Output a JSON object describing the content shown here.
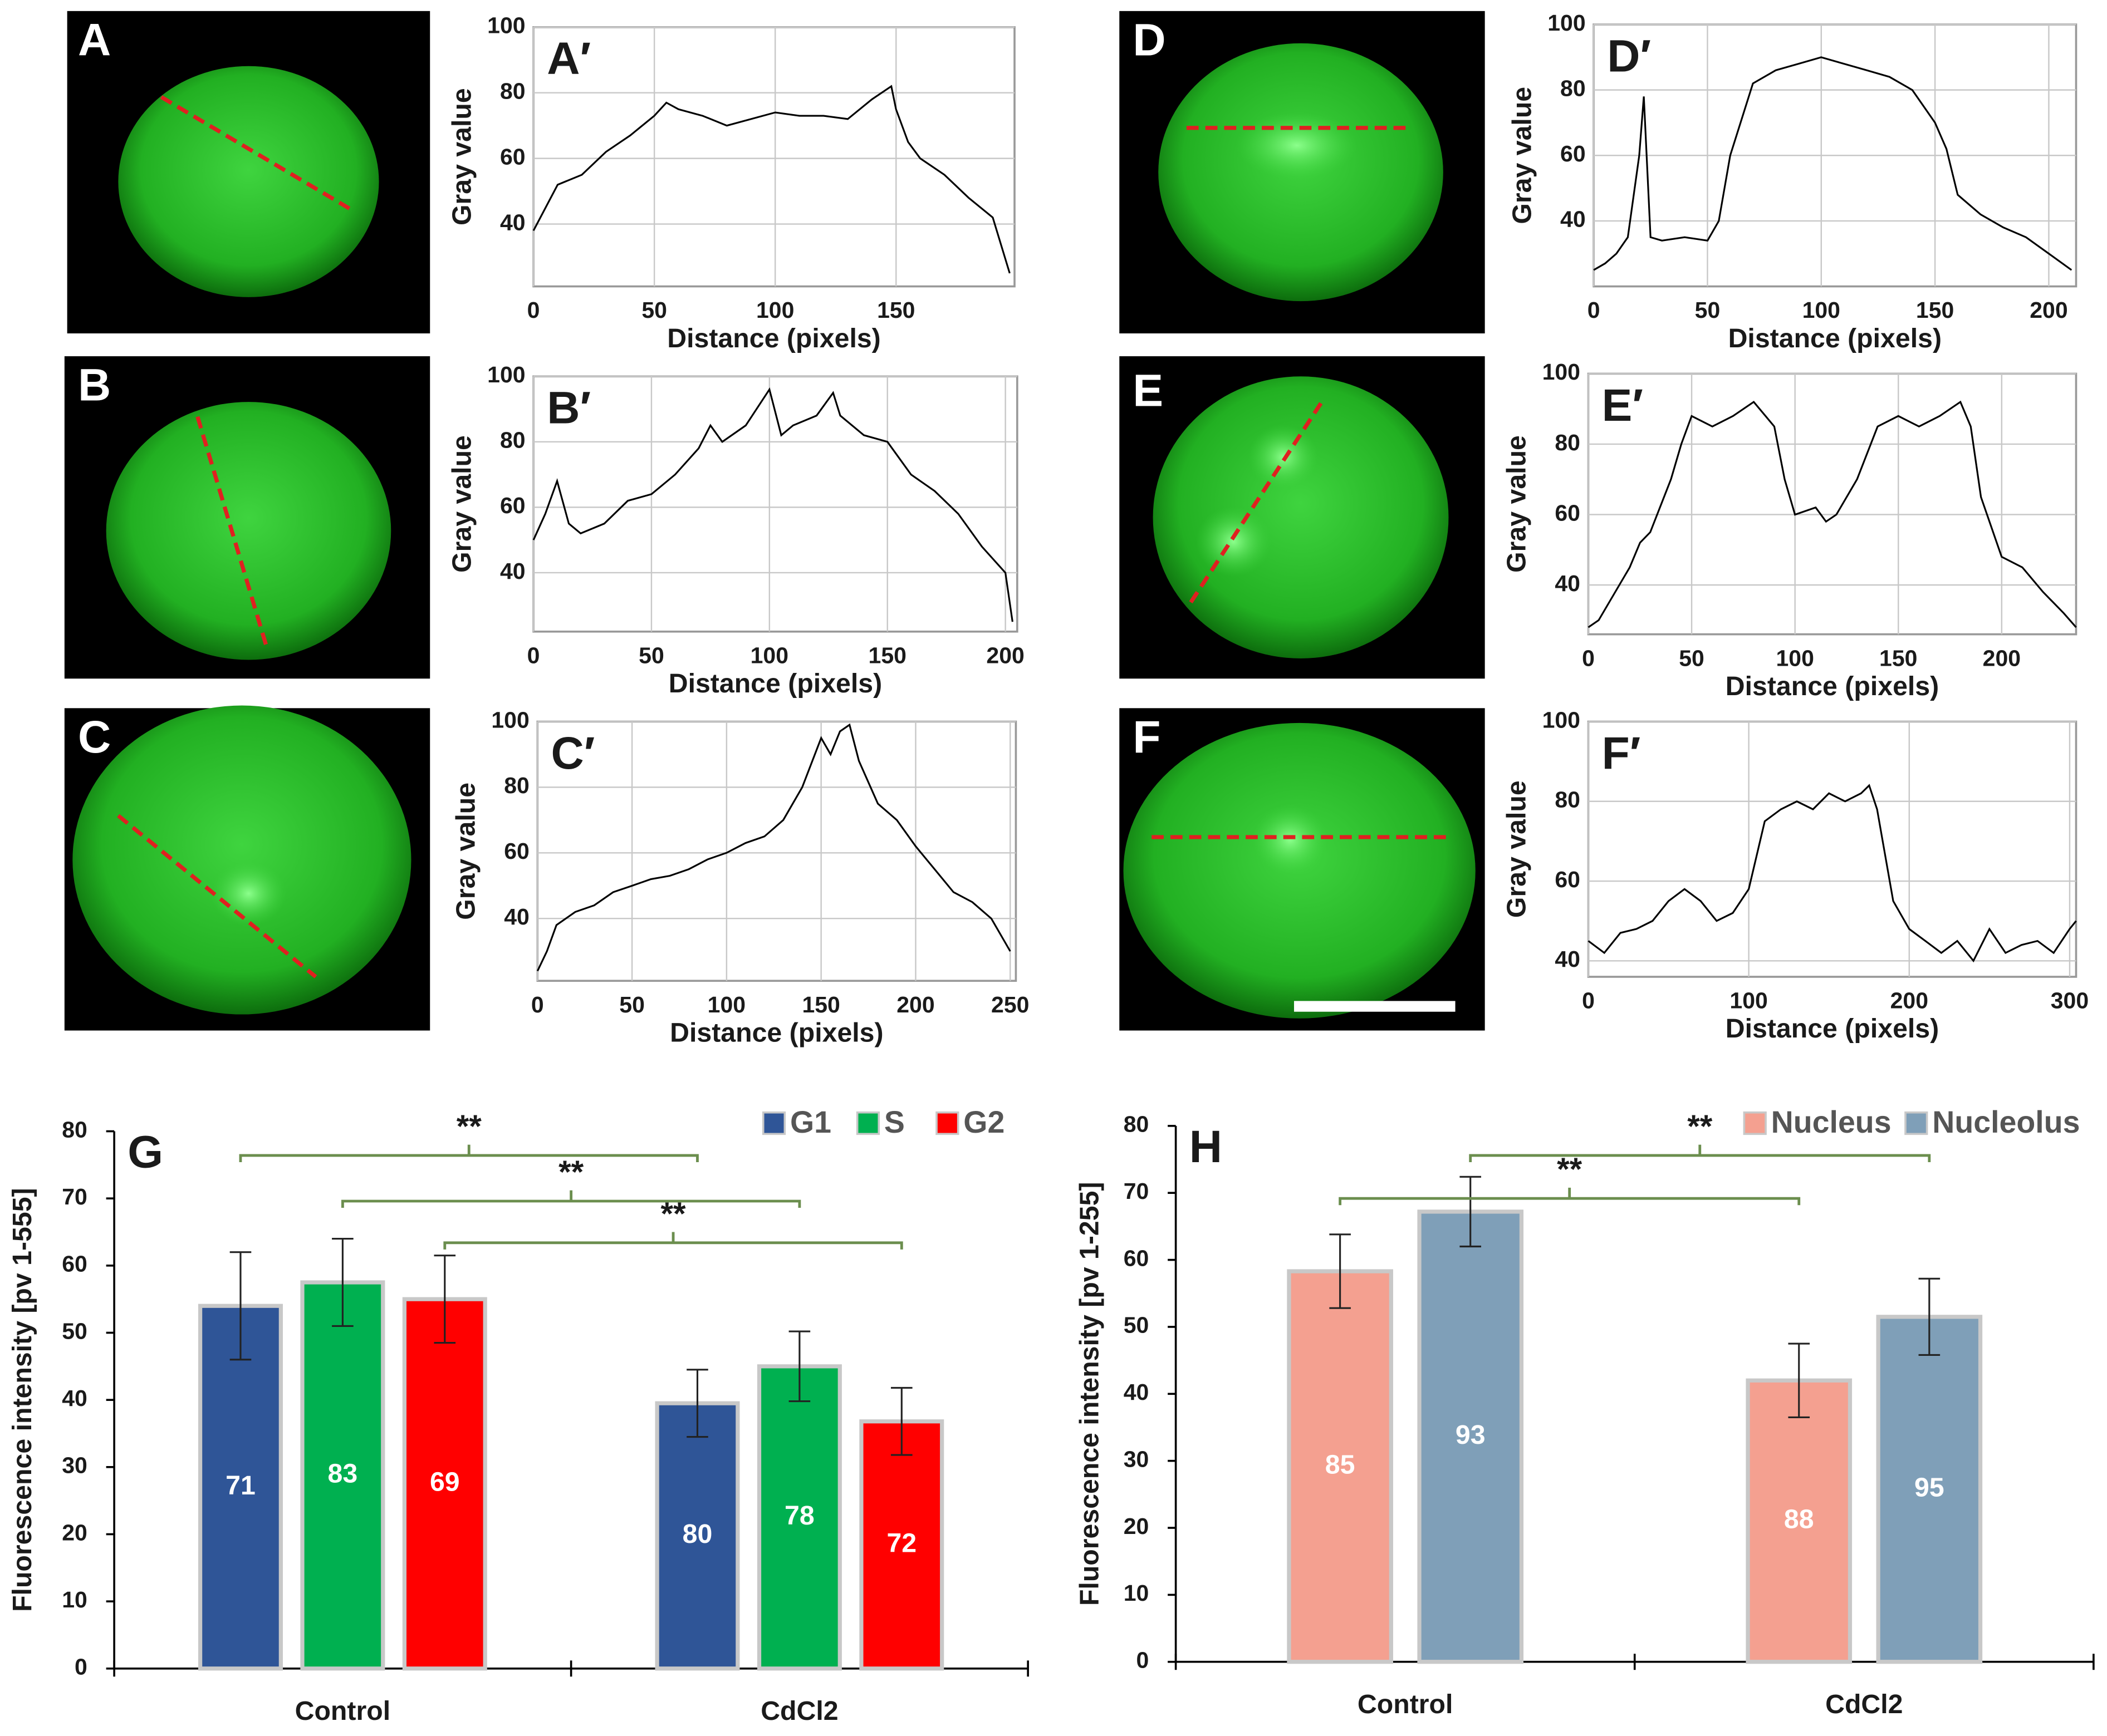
{
  "panels": [
    "A",
    "B",
    "C",
    "D",
    "E",
    "F"
  ],
  "chart_data": [
    {
      "type": "line",
      "label": "A′",
      "xlabel": "Distance (pixels)",
      "ylabel": "Gray value",
      "color": "#000000",
      "grid": true,
      "x": [
        0,
        5,
        10,
        20,
        30,
        40,
        50,
        55,
        60,
        70,
        80,
        90,
        100,
        110,
        120,
        130,
        140,
        148,
        150,
        155,
        160,
        170,
        180,
        190,
        197
      ],
      "values": [
        38,
        45,
        52,
        55,
        62,
        67,
        73,
        77,
        75,
        73,
        70,
        72,
        74,
        73,
        73,
        72,
        78,
        82,
        75,
        65,
        60,
        55,
        48,
        42,
        25
      ],
      "xlim": [
        0,
        199
      ],
      "ylim": [
        21,
        100
      ],
      "xticks": [
        0,
        50,
        100,
        150
      ],
      "yticks": [
        40,
        60,
        80,
        100
      ]
    },
    {
      "type": "line",
      "label": "B′",
      "xlabel": "Distance (pixels)",
      "ylabel": "Gray value",
      "color": "#000000",
      "grid": true,
      "x": [
        0,
        5,
        10,
        15,
        20,
        30,
        40,
        50,
        60,
        70,
        75,
        80,
        90,
        100,
        105,
        110,
        120,
        127,
        130,
        140,
        150,
        160,
        170,
        180,
        190,
        200,
        203
      ],
      "values": [
        50,
        58,
        68,
        55,
        52,
        55,
        62,
        64,
        70,
        78,
        85,
        80,
        85,
        96,
        82,
        85,
        88,
        95,
        88,
        82,
        80,
        70,
        65,
        58,
        48,
        40,
        25
      ],
      "xlim": [
        0,
        205
      ],
      "ylim": [
        22,
        100
      ],
      "xticks": [
        0,
        50,
        100,
        150,
        200
      ],
      "yticks": [
        40,
        60,
        80,
        100
      ]
    },
    {
      "type": "line",
      "label": "C′",
      "xlabel": "Distance (pixels)",
      "ylabel": "Gray value",
      "color": "#000000",
      "grid": true,
      "x": [
        0,
        5,
        10,
        20,
        30,
        40,
        50,
        60,
        70,
        80,
        90,
        100,
        110,
        120,
        130,
        140,
        150,
        155,
        160,
        165,
        170,
        180,
        190,
        200,
        210,
        220,
        230,
        240,
        250
      ],
      "values": [
        24,
        30,
        38,
        42,
        44,
        48,
        50,
        52,
        53,
        55,
        58,
        60,
        63,
        65,
        70,
        80,
        95,
        90,
        97,
        99,
        88,
        75,
        70,
        62,
        55,
        48,
        45,
        40,
        30
      ],
      "xlim": [
        0,
        253
      ],
      "ylim": [
        21,
        100
      ],
      "xticks": [
        0,
        50,
        100,
        150,
        200,
        250
      ],
      "yticks": [
        40,
        60,
        80,
        100
      ]
    },
    {
      "type": "line",
      "label": "D′",
      "xlabel": "Distance (pixels)",
      "ylabel": "Gray value",
      "color": "#000000",
      "grid": true,
      "x": [
        0,
        5,
        10,
        15,
        20,
        22,
        25,
        30,
        40,
        50,
        55,
        60,
        70,
        80,
        90,
        100,
        110,
        120,
        130,
        140,
        150,
        155,
        160,
        170,
        180,
        190,
        200,
        210
      ],
      "values": [
        25,
        27,
        30,
        35,
        60,
        78,
        35,
        34,
        35,
        34,
        40,
        60,
        82,
        86,
        88,
        90,
        88,
        86,
        84,
        80,
        70,
        62,
        48,
        42,
        38,
        35,
        30,
        25
      ],
      "xlim": [
        0,
        212
      ],
      "ylim": [
        20,
        100
      ],
      "xticks": [
        0,
        50,
        100,
        150,
        200
      ],
      "yticks": [
        40,
        60,
        80,
        100
      ]
    },
    {
      "type": "line",
      "label": "E′",
      "xlabel": "Distance (pixels)",
      "ylabel": "Gray value",
      "color": "#000000",
      "grid": true,
      "x": [
        0,
        5,
        10,
        20,
        25,
        30,
        40,
        45,
        50,
        60,
        70,
        80,
        90,
        95,
        100,
        110,
        115,
        120,
        130,
        140,
        150,
        160,
        170,
        180,
        185,
        190,
        200,
        210,
        220,
        230,
        236
      ],
      "values": [
        28,
        30,
        35,
        45,
        52,
        55,
        70,
        80,
        88,
        85,
        88,
        92,
        85,
        70,
        60,
        62,
        58,
        60,
        70,
        85,
        88,
        85,
        88,
        92,
        85,
        65,
        48,
        45,
        38,
        32,
        28
      ],
      "xlim": [
        0,
        236
      ],
      "ylim": [
        26,
        100
      ],
      "xticks": [
        0,
        50,
        100,
        150,
        200
      ],
      "yticks": [
        40,
        60,
        80,
        100
      ]
    },
    {
      "type": "line",
      "label": "F′",
      "xlabel": "Distance (pixels)",
      "ylabel": "Gray value",
      "color": "#000000",
      "grid": true,
      "x": [
        0,
        10,
        20,
        30,
        40,
        50,
        60,
        70,
        80,
        90,
        100,
        110,
        120,
        130,
        140,
        150,
        160,
        170,
        175,
        180,
        190,
        200,
        210,
        220,
        230,
        240,
        250,
        260,
        270,
        280,
        290,
        300,
        304
      ],
      "values": [
        45,
        42,
        47,
        48,
        50,
        55,
        58,
        55,
        50,
        52,
        58,
        75,
        78,
        80,
        78,
        82,
        80,
        82,
        84,
        78,
        55,
        48,
        45,
        42,
        45,
        40,
        48,
        42,
        44,
        45,
        42,
        48,
        50
      ],
      "xlim": [
        0,
        304
      ],
      "ylim": [
        36,
        100
      ],
      "xticks": [
        0,
        100,
        200,
        300
      ],
      "yticks": [
        40,
        60,
        80,
        100
      ]
    },
    {
      "type": "bar",
      "label": "G",
      "ylabel": "Fluorescence intensity [pv 1-555]",
      "categories": [
        "Control",
        "CdCl2"
      ],
      "series": [
        {
          "name": "G1",
          "color": "#2f5597",
          "values": [
            54,
            39.5
          ],
          "errors": [
            8,
            5
          ],
          "bar_texts": [
            "71",
            "80"
          ]
        },
        {
          "name": "S",
          "color": "#00b050",
          "values": [
            57.5,
            45
          ],
          "errors": [
            6.5,
            5.2
          ],
          "bar_texts": [
            "83",
            "78"
          ]
        },
        {
          "name": "G2",
          "color": "#ff0000",
          "values": [
            55,
            36.8
          ],
          "errors": [
            6.5,
            5
          ],
          "bar_texts": [
            "69",
            "72"
          ]
        }
      ],
      "brackets": [
        {
          "label": "**",
          "series": 0
        },
        {
          "label": "**",
          "series": 1
        },
        {
          "label": "**",
          "series": 2
        }
      ],
      "ylim": [
        0,
        80
      ],
      "yticks": [
        0,
        10,
        20,
        30,
        40,
        50,
        60,
        70,
        80
      ]
    },
    {
      "type": "bar",
      "label": "H",
      "ylabel": "Fluorescence intensity [pv 1-255]",
      "categories": [
        "Control",
        "CdCl2"
      ],
      "series": [
        {
          "name": "Nucleus",
          "color": "#f4a090",
          "values": [
            58.3,
            42
          ],
          "errors": [
            5.5,
            5.5
          ],
          "bar_texts": [
            "85",
            "88"
          ]
        },
        {
          "name": "Nucleolus",
          "color": "#7f9fb8",
          "values": [
            67.2,
            51.5
          ],
          "errors": [
            5.2,
            5.7
          ],
          "bar_texts": [
            "93",
            "95"
          ]
        }
      ],
      "brackets": [
        {
          "label": "**",
          "series": 1
        },
        {
          "label": "**",
          "series": 0
        }
      ],
      "ylim": [
        0,
        80
      ],
      "yticks": [
        0,
        10,
        20,
        30,
        40,
        50,
        60,
        70,
        80
      ]
    }
  ]
}
